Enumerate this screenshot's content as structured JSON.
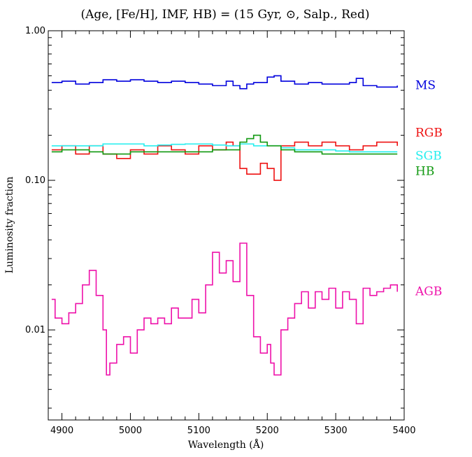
{
  "chart_data": {
    "type": "line",
    "title": "(Age, [Fe/H], IMF, HB) = (15 Gyr, ⊙, Salp., Red)",
    "xlabel": "Wavelength (Å)",
    "ylabel": "Luminosity fraction",
    "xlim": [
      4880,
      5400
    ],
    "ylim": [
      0.0025,
      1.0
    ],
    "yscale": "log",
    "grid": false,
    "legend": "right-of-plot",
    "x_ticks": [
      {
        "value": 4900,
        "label": "4900"
      },
      {
        "value": 5000,
        "label": "5000"
      },
      {
        "value": 5100,
        "label": "5100"
      },
      {
        "value": 5200,
        "label": "5200"
      },
      {
        "value": 5300,
        "label": "5300"
      },
      {
        "value": 5400,
        "label": "5400"
      }
    ],
    "y_ticks": [
      {
        "value": 1.0,
        "label": "1.00"
      },
      {
        "value": 0.1,
        "label": "0.10"
      },
      {
        "value": 0.01,
        "label": "0.01"
      }
    ],
    "series": [
      {
        "name": "MS",
        "color": "#0000dd",
        "x": [
          4885,
          4900,
          4920,
          4940,
          4960,
          4980,
          5000,
          5020,
          5040,
          5060,
          5080,
          5100,
          5120,
          5140,
          5150,
          5160,
          5170,
          5180,
          5200,
          5210,
          5220,
          5240,
          5260,
          5280,
          5300,
          5320,
          5330,
          5340,
          5360,
          5380,
          5390
        ],
        "y": [
          0.45,
          0.46,
          0.44,
          0.45,
          0.47,
          0.46,
          0.47,
          0.46,
          0.45,
          0.46,
          0.45,
          0.44,
          0.43,
          0.46,
          0.43,
          0.41,
          0.44,
          0.45,
          0.49,
          0.5,
          0.46,
          0.44,
          0.45,
          0.44,
          0.44,
          0.45,
          0.48,
          0.43,
          0.42,
          0.42,
          0.43
        ]
      },
      {
        "name": "RGB",
        "color": "#ee1111",
        "x": [
          4885,
          4900,
          4920,
          4940,
          4960,
          4980,
          5000,
          5020,
          5040,
          5060,
          5080,
          5100,
          5120,
          5140,
          5150,
          5160,
          5170,
          5180,
          5190,
          5200,
          5210,
          5220,
          5240,
          5260,
          5280,
          5300,
          5320,
          5340,
          5360,
          5380,
          5390
        ],
        "y": [
          0.16,
          0.17,
          0.15,
          0.17,
          0.15,
          0.14,
          0.16,
          0.15,
          0.17,
          0.16,
          0.15,
          0.17,
          0.16,
          0.18,
          0.17,
          0.12,
          0.11,
          0.11,
          0.13,
          0.12,
          0.1,
          0.17,
          0.18,
          0.17,
          0.18,
          0.17,
          0.16,
          0.17,
          0.18,
          0.18,
          0.17
        ]
      },
      {
        "name": "SGB",
        "color": "#22eeee",
        "x": [
          4885,
          4900,
          4920,
          4940,
          4960,
          4980,
          5000,
          5020,
          5040,
          5060,
          5080,
          5100,
          5120,
          5140,
          5160,
          5180,
          5200,
          5220,
          5240,
          5260,
          5280,
          5300,
          5320,
          5340,
          5360,
          5380,
          5390
        ],
        "y": [
          0.17,
          0.17,
          0.17,
          0.17,
          0.175,
          0.175,
          0.175,
          0.17,
          0.172,
          0.174,
          0.175,
          0.175,
          0.172,
          0.17,
          0.175,
          0.17,
          0.17,
          0.165,
          0.16,
          0.16,
          0.16,
          0.157,
          0.155,
          0.155,
          0.155,
          0.155,
          0.155
        ]
      },
      {
        "name": "HB",
        "color": "#119911",
        "x": [
          4885,
          4900,
          4920,
          4940,
          4960,
          4980,
          5000,
          5020,
          5040,
          5060,
          5080,
          5100,
          5120,
          5140,
          5160,
          5170,
          5180,
          5190,
          5200,
          5220,
          5240,
          5260,
          5280,
          5300,
          5320,
          5340,
          5360,
          5380,
          5390
        ],
        "y": [
          0.155,
          0.16,
          0.16,
          0.155,
          0.15,
          0.15,
          0.155,
          0.155,
          0.155,
          0.155,
          0.155,
          0.155,
          0.16,
          0.16,
          0.18,
          0.19,
          0.2,
          0.18,
          0.17,
          0.16,
          0.155,
          0.155,
          0.15,
          0.15,
          0.15,
          0.15,
          0.15,
          0.15,
          0.15
        ]
      },
      {
        "name": "AGB",
        "color": "#ee11aa",
        "x": [
          4885,
          4890,
          4900,
          4910,
          4920,
          4930,
          4940,
          4950,
          4960,
          4965,
          4970,
          4980,
          4990,
          5000,
          5010,
          5020,
          5030,
          5040,
          5050,
          5060,
          5070,
          5080,
          5090,
          5100,
          5110,
          5120,
          5130,
          5140,
          5150,
          5160,
          5170,
          5180,
          5190,
          5200,
          5205,
          5210,
          5220,
          5230,
          5240,
          5250,
          5260,
          5270,
          5280,
          5290,
          5300,
          5310,
          5320,
          5330,
          5340,
          5350,
          5360,
          5370,
          5380,
          5390
        ],
        "y": [
          0.016,
          0.012,
          0.011,
          0.013,
          0.015,
          0.02,
          0.025,
          0.017,
          0.01,
          0.005,
          0.006,
          0.008,
          0.009,
          0.007,
          0.01,
          0.012,
          0.011,
          0.012,
          0.011,
          0.014,
          0.012,
          0.012,
          0.016,
          0.013,
          0.02,
          0.033,
          0.024,
          0.029,
          0.021,
          0.038,
          0.017,
          0.009,
          0.007,
          0.008,
          0.006,
          0.005,
          0.01,
          0.012,
          0.015,
          0.018,
          0.014,
          0.018,
          0.016,
          0.019,
          0.014,
          0.018,
          0.016,
          0.011,
          0.019,
          0.017,
          0.018,
          0.019,
          0.02,
          0.018
        ]
      }
    ]
  }
}
